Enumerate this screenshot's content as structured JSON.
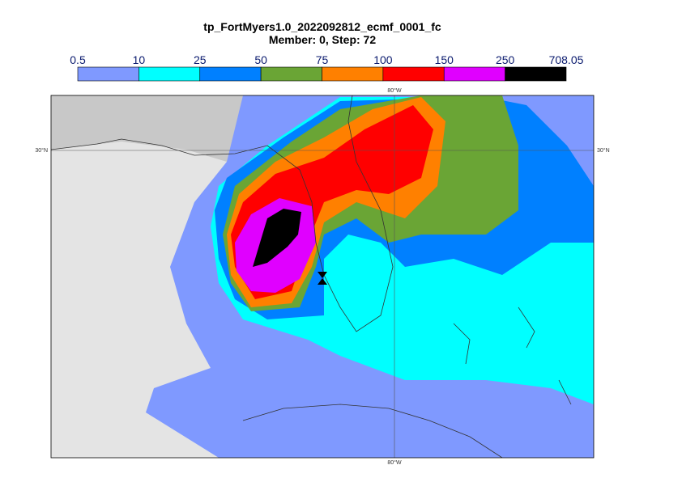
{
  "title": "tp_FortMyers1.0_2022092812_ecmf_0001_fc",
  "subtitle": "Member: 0, Step: 72",
  "colorbar": {
    "bounds": [
      0.5,
      10,
      25,
      50,
      75,
      100,
      150,
      250,
      708.05
    ],
    "colors": [
      "#7f99ff",
      "#00ffff",
      "#0080ff",
      "#6aa535",
      "#ff8000",
      "#ff0000",
      "#e000ff",
      "#000000"
    ]
  },
  "gridlines": {
    "lon_top": "80°W",
    "lon_bottom": "80°W",
    "lat_left": "30°N",
    "lat_right": "30°N"
  }
}
